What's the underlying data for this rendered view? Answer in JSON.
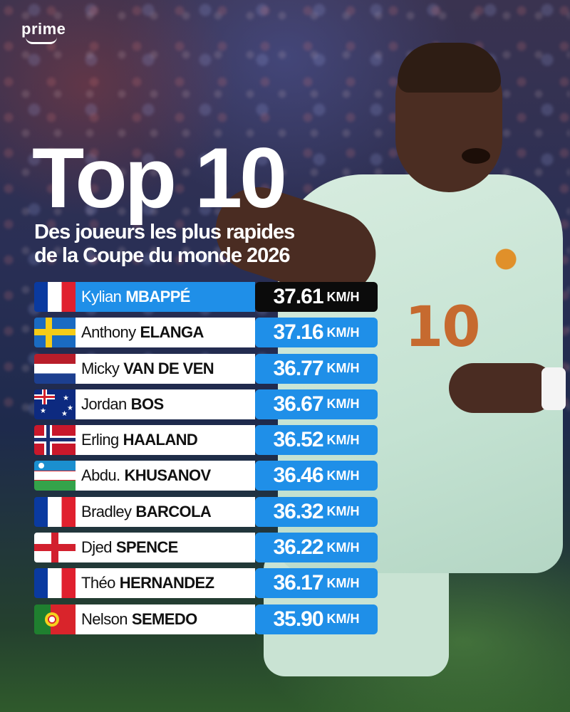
{
  "brand": {
    "name": "prime"
  },
  "header": {
    "title": "Top 10",
    "subtitle_line1": "Des joueurs les plus rapides",
    "subtitle_line2": "de la Coupe du monde 2026"
  },
  "player": {
    "shirt_number": "10"
  },
  "colors": {
    "accent_blue": "#1f8fe8",
    "top_speed_bg": "#0b0b0b",
    "name_bg": "#ffffff"
  },
  "ranking": [
    {
      "flag": "france-flag-icon",
      "first": "Kylian",
      "last": "MBAPPÉ",
      "speed": "37.61",
      "unit": "KM/H"
    },
    {
      "flag": "sweden-flag-icon",
      "first": "Anthony",
      "last": "ELANGA",
      "speed": "37.16",
      "unit": "KM/H"
    },
    {
      "flag": "netherlands-flag-icon",
      "first": "Micky",
      "last": "VAN DE VEN",
      "speed": "36.77",
      "unit": "KM/H"
    },
    {
      "flag": "australia-flag-icon",
      "first": "Jordan",
      "last": "BOS",
      "speed": "36.67",
      "unit": "KM/H"
    },
    {
      "flag": "norway-flag-icon",
      "first": "Erling",
      "last": "HAALAND",
      "speed": "36.52",
      "unit": "KM/H"
    },
    {
      "flag": "uzbekistan-flag-icon",
      "first": "Abdu.",
      "last": "KHUSANOV",
      "speed": "36.46",
      "unit": "KM/H"
    },
    {
      "flag": "france-flag-icon",
      "first": "Bradley",
      "last": "BARCOLA",
      "speed": "36.32",
      "unit": "KM/H"
    },
    {
      "flag": "england-flag-icon",
      "first": "Djed",
      "last": "SPENCE",
      "speed": "36.22",
      "unit": "KM/H"
    },
    {
      "flag": "france-flag-icon",
      "first": "Théo",
      "last": "HERNANDEZ",
      "speed": "36.17",
      "unit": "KM/H"
    },
    {
      "flag": "portugal-flag-icon",
      "first": "Nelson",
      "last": "SEMEDO",
      "speed": "35.90",
      "unit": "KM/H"
    }
  ]
}
